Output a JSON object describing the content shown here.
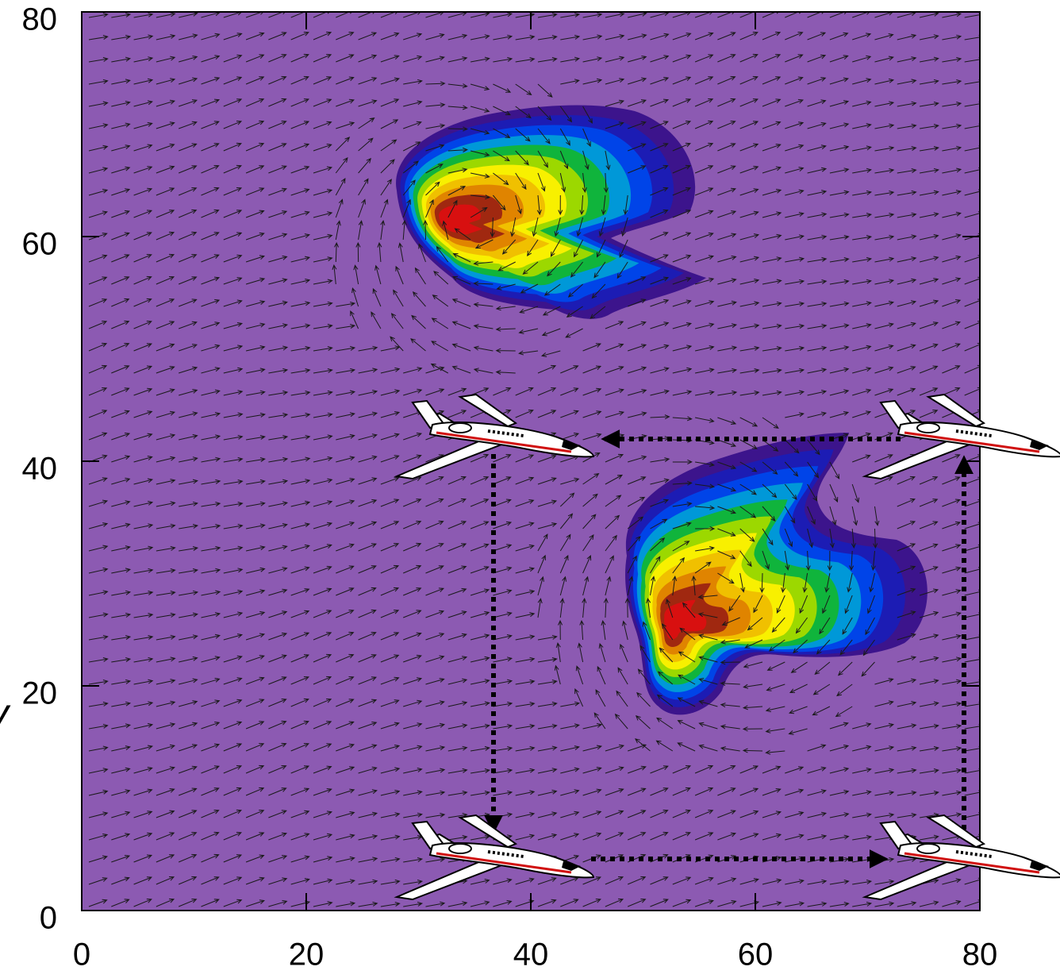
{
  "chart_data": {
    "type": "contour",
    "ylabel": "y",
    "xlim": [
      0,
      80
    ],
    "ylim": [
      0,
      80
    ],
    "xticks": [
      0,
      20,
      40,
      60,
      80
    ],
    "yticks": [
      0,
      20,
      40,
      60,
      80
    ],
    "background_color": "#8c5ab2",
    "contour_colors": [
      "#3c148c",
      "#1c1cb4",
      "#0044e8",
      "#0098d8",
      "#10b43c",
      "#9cd800",
      "#f8f000",
      "#f0c000",
      "#e08400",
      "#a02810",
      "#d81010"
    ],
    "vector_color": "#1a1a1a"
  }
}
